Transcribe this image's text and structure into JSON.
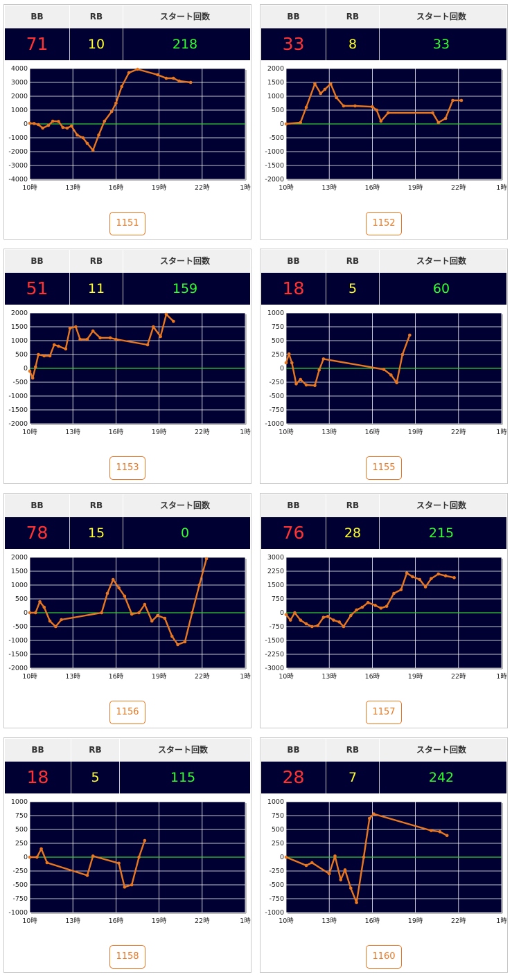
{
  "headers": {
    "bb": "BB",
    "rb": "RB",
    "start": "スタート回数"
  },
  "colors": {
    "plot_bg": "#000033",
    "line": "#e87722",
    "zero_line": "#33cc33",
    "bb": "#ff3333",
    "rb": "#ffff33",
    "start": "#33ff33"
  },
  "cards": [
    {
      "bb": "71",
      "rb": "10",
      "start": "218",
      "button": "1151"
    },
    {
      "bb": "33",
      "rb": "8",
      "start": "33",
      "button": "1152"
    },
    {
      "bb": "51",
      "rb": "11",
      "start": "159",
      "button": "1153"
    },
    {
      "bb": "18",
      "rb": "5",
      "start": "60",
      "button": "1155"
    },
    {
      "bb": "78",
      "rb": "15",
      "start": "0",
      "button": "1156"
    },
    {
      "bb": "76",
      "rb": "28",
      "start": "215",
      "button": "1157"
    },
    {
      "bb": "18",
      "rb": "5",
      "start": "115",
      "button": "1158"
    },
    {
      "bb": "28",
      "rb": "7",
      "start": "242",
      "button": "1160"
    }
  ],
  "chart_data": [
    {
      "type": "line",
      "x_ticks": [
        "10時",
        "13時",
        "16時",
        "19時",
        "22時",
        "1時"
      ],
      "x_range": [
        10,
        25
      ],
      "ylim": [
        -4000,
        4000
      ],
      "y_ticks": [
        4000,
        3000,
        2000,
        1000,
        0,
        -1000,
        -2000,
        -3000,
        -4000
      ],
      "series": [
        {
          "points": [
            [
              10,
              50
            ],
            [
              10.3,
              30
            ],
            [
              10.6,
              -50
            ],
            [
              10.9,
              -300
            ],
            [
              11.3,
              -100
            ],
            [
              11.6,
              200
            ],
            [
              12,
              180
            ],
            [
              12.3,
              -250
            ],
            [
              12.6,
              -300
            ],
            [
              12.9,
              -150
            ],
            [
              13.3,
              -800
            ],
            [
              13.7,
              -1000
            ],
            [
              14,
              -1400
            ],
            [
              14.4,
              -1900
            ],
            [
              14.8,
              -800
            ],
            [
              15.2,
              200
            ],
            [
              15.7,
              900
            ],
            [
              16,
              1500
            ],
            [
              16.4,
              2700
            ],
            [
              16.9,
              3700
            ],
            [
              17.5,
              3950
            ],
            [
              18.9,
              3550
            ],
            [
              19.5,
              3300
            ],
            [
              20,
              3300
            ],
            [
              20.4,
              3100
            ],
            [
              21.2,
              3000
            ]
          ]
        }
      ]
    },
    {
      "type": "line",
      "x_ticks": [
        "10時",
        "13時",
        "16時",
        "19時",
        "22時",
        "1時"
      ],
      "x_range": [
        10,
        25
      ],
      "ylim": [
        -2000,
        2000
      ],
      "y_ticks": [
        2000,
        1500,
        1000,
        500,
        0,
        -500,
        -1000,
        -1500,
        -2000
      ],
      "series": [
        {
          "points": [
            [
              10,
              0
            ],
            [
              11,
              50
            ],
            [
              11.4,
              600
            ],
            [
              12,
              1450
            ],
            [
              12.4,
              1100
            ],
            [
              12.7,
              1250
            ],
            [
              13.1,
              1450
            ],
            [
              13.5,
              950
            ],
            [
              14,
              650
            ],
            [
              14.8,
              650
            ],
            [
              16,
              620
            ],
            [
              16.3,
              500
            ],
            [
              16.6,
              100
            ],
            [
              17.1,
              400
            ],
            [
              20.2,
              400
            ],
            [
              20.6,
              50
            ],
            [
              21.1,
              200
            ],
            [
              21.6,
              850
            ],
            [
              22.2,
              850
            ]
          ]
        }
      ]
    },
    {
      "type": "line",
      "x_ticks": [
        "10時",
        "13時",
        "16時",
        "19時",
        "22時",
        "1時"
      ],
      "x_range": [
        10,
        25
      ],
      "ylim": [
        -2000,
        2000
      ],
      "y_ticks": [
        2000,
        1500,
        1000,
        500,
        0,
        -500,
        -1000,
        -1500,
        -2000
      ],
      "series": [
        {
          "points": [
            [
              10,
              -100
            ],
            [
              10.2,
              -350
            ],
            [
              10.4,
              50
            ],
            [
              10.6,
              500
            ],
            [
              11,
              450
            ],
            [
              11.4,
              450
            ],
            [
              11.7,
              850
            ],
            [
              12,
              800
            ],
            [
              12.5,
              700
            ],
            [
              12.8,
              1450
            ],
            [
              13.2,
              1500
            ],
            [
              13.5,
              1050
            ],
            [
              14,
              1050
            ],
            [
              14.4,
              1350
            ],
            [
              14.9,
              1100
            ],
            [
              15.6,
              1100
            ],
            [
              16,
              1050
            ],
            [
              18.2,
              850
            ],
            [
              18.6,
              1500
            ],
            [
              19.1,
              1150
            ],
            [
              19.5,
              1950
            ],
            [
              20,
              1700
            ]
          ]
        }
      ]
    },
    {
      "type": "line",
      "x_ticks": [
        "10時",
        "13時",
        "16時",
        "19時",
        "22時",
        "1時"
      ],
      "x_range": [
        10,
        25
      ],
      "ylim": [
        -1000,
        1000
      ],
      "y_ticks": [
        1000,
        750,
        500,
        250,
        0,
        -250,
        -500,
        -750,
        -1000
      ],
      "series": [
        {
          "points": [
            [
              10,
              100
            ],
            [
              10.2,
              260
            ],
            [
              10.4,
              100
            ],
            [
              10.7,
              -280
            ],
            [
              11,
              -200
            ],
            [
              11.4,
              -300
            ],
            [
              12,
              -310
            ],
            [
              12.3,
              -30
            ],
            [
              12.6,
              170
            ],
            [
              16.8,
              -20
            ],
            [
              17.3,
              -120
            ],
            [
              17.7,
              -260
            ],
            [
              18.1,
              250
            ],
            [
              18.6,
              600
            ]
          ]
        }
      ]
    },
    {
      "type": "line",
      "x_ticks": [
        "10時",
        "13時",
        "16時",
        "19時",
        "22時",
        "1時"
      ],
      "x_range": [
        10,
        25
      ],
      "ylim": [
        -2000,
        2000
      ],
      "y_ticks": [
        2000,
        1500,
        1000,
        500,
        0,
        -500,
        -1000,
        -1500,
        -2000
      ],
      "series": [
        {
          "points": [
            [
              10,
              0
            ],
            [
              10.4,
              0
            ],
            [
              10.7,
              400
            ],
            [
              11,
              200
            ],
            [
              11.4,
              -300
            ],
            [
              11.8,
              -500
            ],
            [
              12.2,
              -250
            ],
            [
              15,
              0
            ],
            [
              15.4,
              700
            ],
            [
              15.8,
              1200
            ],
            [
              16.2,
              900
            ],
            [
              16.6,
              600
            ],
            [
              17.1,
              -50
            ],
            [
              17.6,
              0
            ],
            [
              18,
              300
            ],
            [
              18.5,
              -300
            ],
            [
              18.9,
              -100
            ],
            [
              19.4,
              -200
            ],
            [
              19.9,
              -850
            ],
            [
              20.3,
              -1150
            ],
            [
              20.8,
              -1050
            ],
            [
              21.3,
              0
            ],
            [
              21.8,
              1000
            ],
            [
              22.3,
              1950
            ]
          ]
        }
      ]
    },
    {
      "type": "line",
      "x_ticks": [
        "10時",
        "13時",
        "16時",
        "19時",
        "22時",
        "1時"
      ],
      "x_range": [
        10,
        25
      ],
      "ylim": [
        -3000,
        3000
      ],
      "y_ticks": [
        3000,
        2250,
        1500,
        750,
        0,
        -750,
        -1500,
        -2250,
        -3000
      ],
      "series": [
        {
          "points": [
            [
              10,
              -100
            ],
            [
              10.3,
              -400
            ],
            [
              10.6,
              0
            ],
            [
              11,
              -400
            ],
            [
              11.4,
              -600
            ],
            [
              11.8,
              -750
            ],
            [
              12.2,
              -700
            ],
            [
              12.6,
              -250
            ],
            [
              12.9,
              -200
            ],
            [
              13.3,
              -400
            ],
            [
              13.7,
              -500
            ],
            [
              14,
              -750
            ],
            [
              14.5,
              -150
            ],
            [
              14.9,
              150
            ],
            [
              15.3,
              300
            ],
            [
              15.7,
              550
            ],
            [
              16.2,
              400
            ],
            [
              16.6,
              250
            ],
            [
              17,
              350
            ],
            [
              17.5,
              1050
            ],
            [
              18,
              1250
            ],
            [
              18.4,
              2150
            ],
            [
              18.8,
              1950
            ],
            [
              19.3,
              1800
            ],
            [
              19.7,
              1400
            ],
            [
              20.1,
              1850
            ],
            [
              20.6,
              2100
            ],
            [
              21.1,
              2000
            ],
            [
              21.7,
              1900
            ]
          ]
        }
      ]
    },
    {
      "type": "line",
      "x_ticks": [
        "10時",
        "13時",
        "16時",
        "19時",
        "22時",
        "1時"
      ],
      "x_range": [
        10,
        25
      ],
      "ylim": [
        -1000,
        1000
      ],
      "y_ticks": [
        1000,
        750,
        500,
        250,
        0,
        -250,
        -500,
        -750,
        -1000
      ],
      "series": [
        {
          "points": [
            [
              10,
              0
            ],
            [
              10.5,
              0
            ],
            [
              10.8,
              150
            ],
            [
              11.2,
              -100
            ],
            [
              14,
              -330
            ],
            [
              14.4,
              20
            ],
            [
              16.2,
              -110
            ],
            [
              16.6,
              -540
            ],
            [
              17.1,
              -500
            ],
            [
              17.6,
              0
            ],
            [
              18,
              300
            ]
          ]
        }
      ]
    },
    {
      "type": "line",
      "x_ticks": [
        "10時",
        "13時",
        "16時",
        "19時",
        "22時",
        "1時"
      ],
      "x_range": [
        10,
        25
      ],
      "ylim": [
        -1000,
        1000
      ],
      "y_ticks": [
        1000,
        750,
        500,
        250,
        0,
        -250,
        -500,
        -750,
        -1000
      ],
      "series": [
        {
          "points": [
            [
              10,
              0
            ],
            [
              11.4,
              -150
            ],
            [
              11.8,
              -100
            ],
            [
              13,
              -300
            ],
            [
              13.4,
              20
            ],
            [
              13.8,
              -410
            ],
            [
              14.1,
              -230
            ],
            [
              14.5,
              -560
            ],
            [
              14.9,
              -820
            ],
            [
              15.4,
              0
            ],
            [
              15.8,
              700
            ],
            [
              16.1,
              780
            ],
            [
              20.1,
              480
            ],
            [
              20.7,
              460
            ],
            [
              21.2,
              390
            ]
          ]
        }
      ]
    }
  ]
}
